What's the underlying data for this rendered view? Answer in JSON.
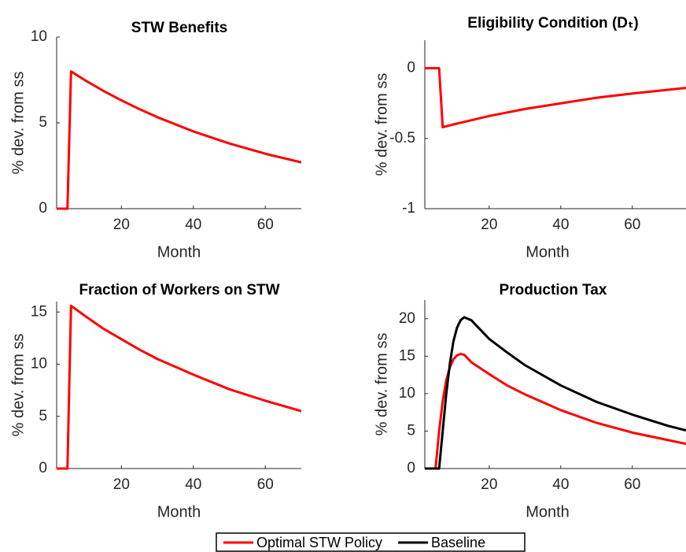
{
  "chart_data": [
    {
      "type": "line",
      "title": "STW Benefits",
      "xlabel": "Month",
      "ylabel": "% dev. from ss",
      "x": [
        2,
        4,
        5,
        6,
        8,
        10,
        15,
        20,
        25,
        30,
        40,
        50,
        60,
        70
      ],
      "series": [
        {
          "color": "#ff0000",
          "values": [
            0,
            0,
            0,
            8.0,
            7.73,
            7.47,
            6.86,
            6.31,
            5.8,
            5.33,
            4.5,
            3.8,
            3.2,
            2.7
          ]
        }
      ],
      "xlim": [
        2,
        70
      ],
      "ylim": [
        0,
        10
      ],
      "xticks": [
        20,
        40,
        60
      ],
      "yticks": [
        0,
        5,
        10
      ]
    },
    {
      "type": "line",
      "title": "Eligibility Condition (Dₜ)",
      "xlabel": "Month",
      "ylabel": "% dev. from ss",
      "x": [
        2,
        5,
        6,
        7,
        10,
        15,
        20,
        30,
        40,
        50,
        60,
        75
      ],
      "series": [
        {
          "color": "#ff0000",
          "values": [
            0,
            0,
            0,
            -0.42,
            -0.4,
            -0.37,
            -0.34,
            -0.29,
            -0.25,
            -0.21,
            -0.18,
            -0.14
          ]
        }
      ],
      "xlim": [
        2,
        75
      ],
      "ylim": [
        -1,
        0.2
      ],
      "xticks": [
        20,
        40,
        60
      ],
      "yticks": [
        -1,
        -0.5,
        0
      ]
    },
    {
      "type": "line",
      "title": "Fraction of Workers on STW",
      "xlabel": "Month",
      "ylabel": "% dev. from ss",
      "x": [
        2,
        4,
        5,
        6,
        8,
        10,
        15,
        20,
        25,
        30,
        40,
        50,
        60,
        70
      ],
      "series": [
        {
          "color": "#ff0000",
          "values": [
            0,
            0,
            0,
            15.6,
            15.1,
            14.6,
            13.4,
            12.4,
            11.4,
            10.5,
            9.0,
            7.6,
            6.5,
            5.5
          ]
        }
      ],
      "xlim": [
        2,
        70
      ],
      "ylim": [
        0,
        16
      ],
      "xticks": [
        20,
        40,
        60
      ],
      "yticks": [
        0,
        5,
        10,
        15
      ]
    },
    {
      "type": "line",
      "title": "Production Tax",
      "xlabel": "Month",
      "ylabel": "% dev. from ss",
      "x": [
        2,
        5,
        6,
        7,
        8,
        9,
        10,
        11,
        12,
        13,
        15,
        20,
        25,
        30,
        40,
        50,
        60,
        70,
        75
      ],
      "series": [
        {
          "name": "Optimal STW Policy",
          "color": "#ff0000",
          "values": [
            0,
            0,
            5,
            9,
            11.8,
            13.5,
            14.6,
            15.1,
            15.3,
            15.2,
            14.2,
            12.6,
            11.1,
            9.9,
            7.8,
            6.1,
            4.8,
            3.8,
            3.3
          ]
        },
        {
          "name": "Baseline",
          "color": "#000000",
          "values": [
            0,
            0,
            0,
            5,
            10,
            14,
            17,
            18.8,
            19.8,
            20.2,
            19.8,
            17.3,
            15.5,
            13.8,
            11.1,
            8.9,
            7.2,
            5.7,
            5.1
          ]
        }
      ],
      "xlim": [
        2,
        75
      ],
      "ylim": [
        0,
        22.5
      ],
      "xticks": [
        20,
        40,
        60
      ],
      "yticks": [
        0,
        5,
        10,
        15,
        20
      ],
      "legend": "below"
    }
  ]
}
